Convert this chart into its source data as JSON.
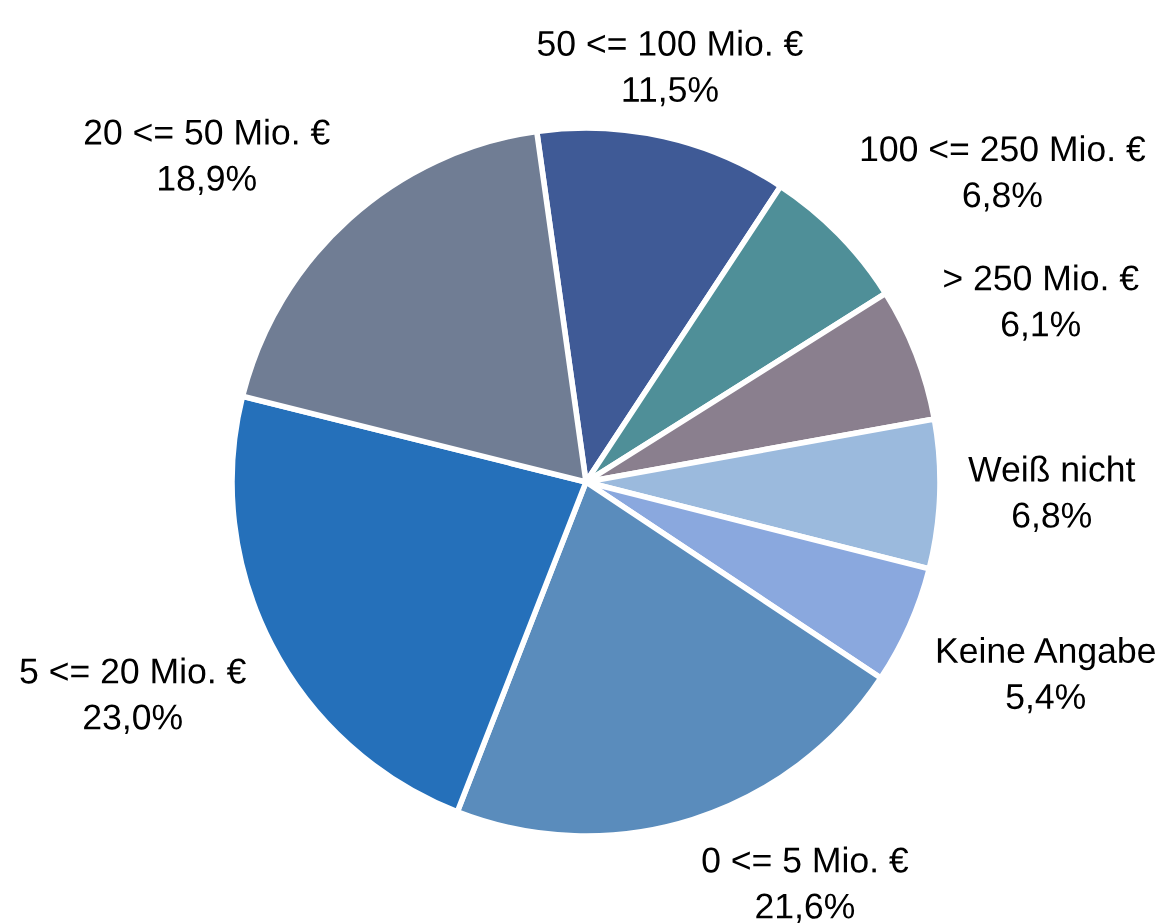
{
  "chart_data": {
    "type": "pie",
    "categories": [
      "50 <= 100 Mio. €",
      "100 <= 250 Mio. €",
      "> 250 Mio. €",
      "Weiß nicht",
      "Keine Angabe",
      "0 <= 5 Mio. €",
      "5 <= 20 Mio. €",
      "20 <= 50 Mio. €"
    ],
    "values": [
      11.5,
      6.8,
      6.1,
      6.8,
      5.4,
      21.6,
      23.0,
      18.9
    ],
    "value_labels": [
      "11,5%",
      "6,8%",
      "6,1%",
      "6,8%",
      "5,4%",
      "21,6%",
      "23,0%",
      "18,9%"
    ],
    "colors": [
      "#3f5a96",
      "#4f8f98",
      "#8a7f8e",
      "#9bbadd",
      "#8aa8de",
      "#5a8cbc",
      "#2570ba",
      "#707d94"
    ]
  }
}
